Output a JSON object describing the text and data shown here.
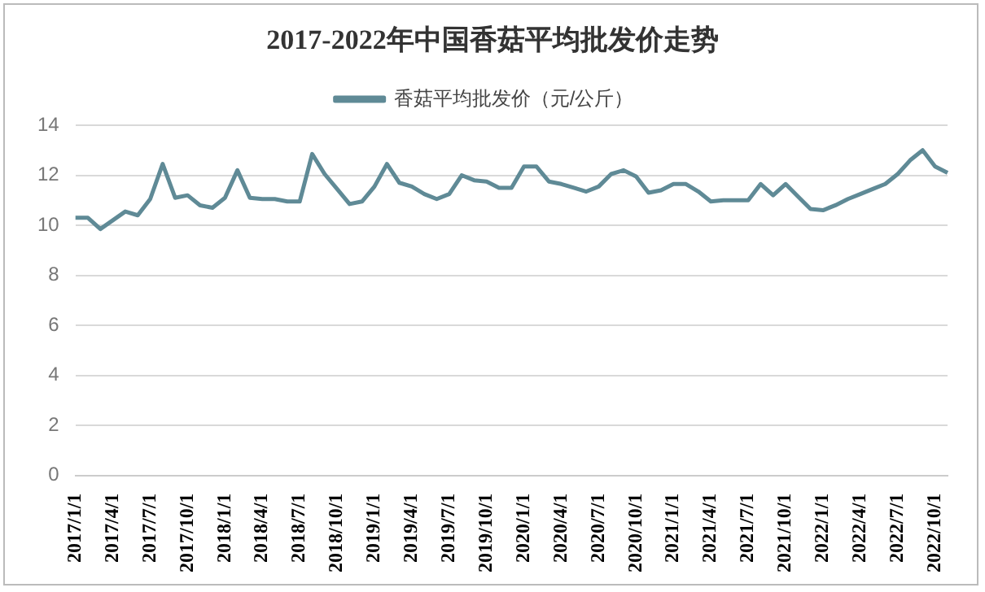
{
  "chart_data": {
    "type": "line",
    "title": "2017-2022年中国香菇平均批发价走势",
    "categories": [
      "2017/1/1",
      null,
      null,
      "2017/4/1",
      null,
      null,
      "2017/7/1",
      null,
      null,
      "2017/10/1",
      null,
      null,
      "2018/1/1",
      null,
      null,
      "2018/4/1",
      null,
      null,
      "2018/7/1",
      null,
      null,
      "2018/10/1",
      null,
      null,
      "2019/1/1",
      null,
      null,
      "2019/4/1",
      null,
      null,
      "2019/7/1",
      null,
      null,
      "2019/10/1",
      null,
      null,
      "2020/1/1",
      null,
      null,
      "2020/4/1",
      null,
      null,
      "2020/7/1",
      null,
      null,
      "2020/10/1",
      null,
      null,
      "2021/1/1",
      null,
      null,
      "2021/4/1",
      null,
      null,
      "2021/7/1",
      null,
      null,
      "2021/10/1",
      null,
      null,
      "2022/1/1",
      null,
      null,
      "2022/4/1",
      null,
      null,
      "2022/7/1",
      null,
      null,
      "2022/10/1",
      null
    ],
    "series": [
      {
        "name": "香菇平均批发价（元/公斤）",
        "color": "#5f8a96",
        "values": [
          10.3,
          10.3,
          9.85,
          10.2,
          10.55,
          10.4,
          11.05,
          12.45,
          11.1,
          11.2,
          10.8,
          10.7,
          11.1,
          12.2,
          11.1,
          11.05,
          11.05,
          10.95,
          10.95,
          12.85,
          12.05,
          11.45,
          10.85,
          10.95,
          11.55,
          12.45,
          11.7,
          11.55,
          11.25,
          11.05,
          11.25,
          12.0,
          11.8,
          11.75,
          11.5,
          11.5,
          12.35,
          12.35,
          11.75,
          11.65,
          11.5,
          11.35,
          11.55,
          12.05,
          12.2,
          11.95,
          11.3,
          11.4,
          11.65,
          11.65,
          11.35,
          10.95,
          11.0,
          11.0,
          11.0,
          11.65,
          11.2,
          11.65,
          11.15,
          10.65,
          10.6,
          10.8,
          11.05,
          11.25,
          11.45,
          11.65,
          12.05,
          12.6,
          13.0,
          12.35,
          12.1
        ]
      }
    ],
    "ylim": [
      0,
      14
    ],
    "yticks": [
      0,
      2,
      4,
      6,
      8,
      10,
      12,
      14
    ],
    "grid": "y",
    "legend": "top",
    "marker": "none",
    "line_style": "solid"
  }
}
